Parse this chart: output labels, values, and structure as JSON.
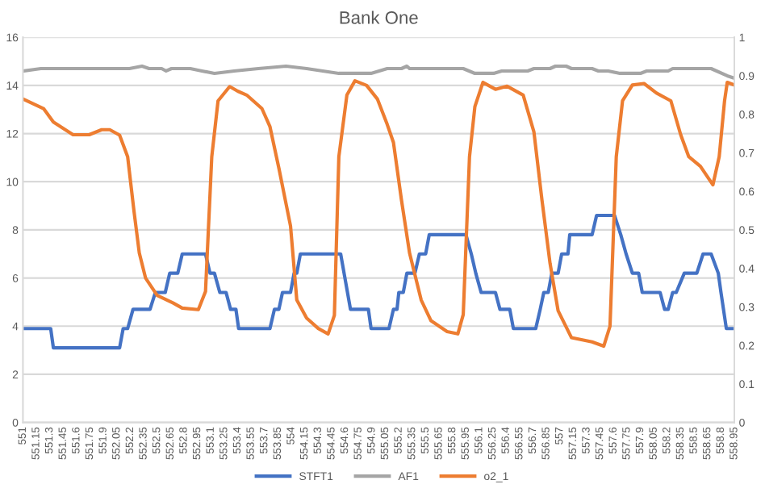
{
  "chart_data": {
    "type": "line",
    "title": "Bank One",
    "xlim": [
      551,
      558.95
    ],
    "xticks": [
      551,
      551.15,
      551.3,
      551.45,
      551.6,
      551.75,
      551.9,
      552.05,
      552.2,
      552.35,
      552.5,
      552.65,
      552.8,
      552.95,
      553.1,
      553.25,
      553.4,
      553.55,
      553.7,
      553.85,
      554,
      554.15,
      554.3,
      554.45,
      554.6,
      554.75,
      554.9,
      555.05,
      555.2,
      555.35,
      555.5,
      555.65,
      555.8,
      555.95,
      556.1,
      556.25,
      556.4,
      556.55,
      556.7,
      556.85,
      557,
      557.15,
      557.3,
      557.45,
      557.6,
      557.75,
      557.9,
      558.05,
      558.2,
      558.35,
      558.5,
      558.65,
      558.8,
      558.95
    ],
    "ylim": [
      0,
      16
    ],
    "yticks": [
      0,
      2,
      4,
      6,
      8,
      10,
      12,
      14,
      16
    ],
    "y2lim": [
      0,
      1
    ],
    "y2ticks": [
      0,
      0.1,
      0.2,
      0.3,
      0.4,
      0.5,
      0.6,
      0.7,
      0.8,
      0.9,
      1
    ],
    "grid": "y",
    "legend": "bottom",
    "marker": "none",
    "line_style": "solid",
    "series": [
      {
        "name": "STFT1",
        "color": "#4472c4",
        "x": [
          551.0,
          551.31,
          551.34,
          552.08,
          552.12,
          552.17,
          552.23,
          552.42,
          552.48,
          552.59,
          552.64,
          552.73,
          552.78,
          553.04,
          553.09,
          553.14,
          553.2,
          553.27,
          553.32,
          553.38,
          553.41,
          553.76,
          553.81,
          553.86,
          553.9,
          553.99,
          554.03,
          554.06,
          554.1,
          554.55,
          554.66,
          554.86,
          554.89,
          555.09,
          555.14,
          555.18,
          555.2,
          555.25,
          555.29,
          555.38,
          555.43,
          555.5,
          555.54,
          555.95,
          556.01,
          556.06,
          556.12,
          556.28,
          556.33,
          556.44,
          556.48,
          556.73,
          556.78,
          556.82,
          556.87,
          556.91,
          556.98,
          557.02,
          557.09,
          557.11,
          557.36,
          557.41,
          557.61,
          557.68,
          557.74,
          557.81,
          557.88,
          557.92,
          558.12,
          558.17,
          558.21,
          558.26,
          558.3,
          558.39,
          558.53,
          558.6,
          558.69,
          558.77,
          558.8,
          558.86,
          558.95
        ],
        "values": [
          3.9,
          3.9,
          3.1,
          3.1,
          3.9,
          3.9,
          4.7,
          4.7,
          5.4,
          5.4,
          6.2,
          6.2,
          7.0,
          7.0,
          6.2,
          6.2,
          5.4,
          5.4,
          4.7,
          4.7,
          3.9,
          3.9,
          4.7,
          4.7,
          5.4,
          5.4,
          6.2,
          6.2,
          7.0,
          7.0,
          4.7,
          4.7,
          3.9,
          3.9,
          4.7,
          4.7,
          5.4,
          5.4,
          6.2,
          6.2,
          7.0,
          7.0,
          7.8,
          7.8,
          7.0,
          6.2,
          5.4,
          5.4,
          4.7,
          4.7,
          3.9,
          3.9,
          4.7,
          5.4,
          5.4,
          6.2,
          6.2,
          7.0,
          7.0,
          7.8,
          7.8,
          8.6,
          8.6,
          7.8,
          7.0,
          6.2,
          6.2,
          5.4,
          5.4,
          4.7,
          4.7,
          5.4,
          5.4,
          6.2,
          6.2,
          7.0,
          7.0,
          6.2,
          5.4,
          3.9,
          3.9
        ]
      },
      {
        "name": "AF1",
        "color": "#a5a5a5",
        "x": [
          551.0,
          551.2,
          552.19,
          552.33,
          552.41,
          552.55,
          552.6,
          552.66,
          552.87,
          553.0,
          553.14,
          553.36,
          553.63,
          553.94,
          554.17,
          554.53,
          554.89,
          555.07,
          555.23,
          555.29,
          555.32,
          555.92,
          556.05,
          556.26,
          556.35,
          556.64,
          556.71,
          556.89,
          556.95,
          557.07,
          557.13,
          557.36,
          557.43,
          557.54,
          557.67,
          557.9,
          557.97,
          558.21,
          558.26,
          558.69,
          558.87,
          558.95
        ],
        "values": [
          14.6,
          14.7,
          14.7,
          14.8,
          14.7,
          14.7,
          14.6,
          14.7,
          14.7,
          14.6,
          14.5,
          14.6,
          14.7,
          14.8,
          14.7,
          14.5,
          14.5,
          14.7,
          14.7,
          14.8,
          14.7,
          14.7,
          14.5,
          14.5,
          14.6,
          14.6,
          14.7,
          14.7,
          14.8,
          14.8,
          14.7,
          14.7,
          14.6,
          14.6,
          14.5,
          14.5,
          14.6,
          14.6,
          14.7,
          14.7,
          14.4,
          14.3
        ]
      },
      {
        "name": "o2_1",
        "color": "#ed7d31",
        "axis": "y2",
        "x": [
          551.0,
          551.23,
          551.34,
          551.56,
          551.74,
          551.88,
          551.97,
          552.08,
          552.17,
          552.24,
          552.3,
          552.37,
          552.5,
          552.68,
          552.78,
          552.96,
          553.04,
          553.11,
          553.18,
          553.31,
          553.4,
          553.5,
          553.67,
          553.76,
          553.86,
          553.99,
          554.06,
          554.17,
          554.3,
          554.41,
          554.48,
          554.53,
          554.62,
          554.71,
          554.84,
          554.96,
          555.07,
          555.14,
          555.23,
          555.32,
          555.45,
          555.56,
          555.74,
          555.86,
          555.92,
          555.99,
          556.05,
          556.14,
          556.28,
          556.41,
          556.59,
          556.71,
          556.8,
          556.89,
          556.98,
          557.13,
          557.36,
          557.49,
          557.56,
          557.63,
          557.7,
          557.81,
          557.94,
          558.08,
          558.24,
          558.35,
          558.44,
          558.57,
          558.71,
          558.78,
          558.84,
          558.87,
          558.95
        ],
        "values": [
          0.84,
          0.815,
          0.78,
          0.747,
          0.747,
          0.76,
          0.76,
          0.746,
          0.69,
          0.55,
          0.44,
          0.375,
          0.33,
          0.31,
          0.297,
          0.293,
          0.34,
          0.69,
          0.835,
          0.872,
          0.86,
          0.85,
          0.815,
          0.768,
          0.66,
          0.51,
          0.318,
          0.271,
          0.244,
          0.23,
          0.278,
          0.69,
          0.85,
          0.887,
          0.875,
          0.84,
          0.774,
          0.727,
          0.577,
          0.44,
          0.318,
          0.264,
          0.236,
          0.23,
          0.28,
          0.69,
          0.82,
          0.883,
          0.865,
          0.873,
          0.85,
          0.754,
          0.577,
          0.413,
          0.29,
          0.22,
          0.209,
          0.198,
          0.25,
          0.69,
          0.835,
          0.876,
          0.88,
          0.855,
          0.835,
          0.747,
          0.69,
          0.665,
          0.617,
          0.69,
          0.835,
          0.883,
          0.876
        ]
      }
    ]
  }
}
